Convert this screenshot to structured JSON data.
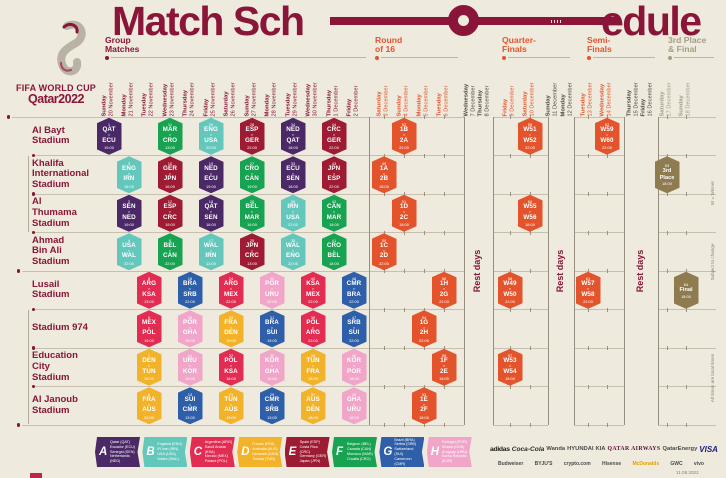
{
  "title": {
    "left": "Match Sch",
    "right": "edule"
  },
  "logo": {
    "line1": "FIFA WORLD CUP",
    "line2": "Qatar2022"
  },
  "colors": {
    "background": "#EEEADE",
    "maroon": "#8A1538",
    "knockout_orange": "#E4542C",
    "gold": "#8F7B50",
    "groups": {
      "A": "#4B2866",
      "B": "#63C7BC",
      "C": "#E22C52",
      "D": "#F2B32A",
      "E": "#9D1B33",
      "F": "#17A351",
      "G": "#2E5FA8",
      "H": "#F0A5C9",
      "KO": "#E4542C",
      "GOLD": "#8F7B50"
    },
    "date_phases": {
      "group": "#8A1538",
      "knockout": "#E4542C",
      "rest": "#4E4A44",
      "final": "#A79D86"
    }
  },
  "phases": [
    {
      "line1": "Group",
      "line2": "Matches",
      "color": "#8A1538"
    },
    {
      "line1": "Round",
      "line2": "of 16",
      "color": "#E4542C"
    },
    {
      "line1": "Quarter-",
      "line2": "Finals",
      "color": "#E4542C"
    },
    {
      "line1": "Semi-",
      "line2": "Finals",
      "color": "#E4542C"
    },
    {
      "line1": "3rd Place",
      "line2": "& Final",
      "color": "#A79D86"
    }
  ],
  "columns": [
    {
      "day": "Sunday",
      "date": "20 November",
      "phase": "group"
    },
    {
      "day": "Monday",
      "date": "21 November",
      "phase": "group"
    },
    {
      "day": "Tuesday",
      "date": "22 November",
      "phase": "group"
    },
    {
      "day": "Wednesday",
      "date": "23 November",
      "phase": "group"
    },
    {
      "day": "Thursday",
      "date": "24 November",
      "phase": "group"
    },
    {
      "day": "Friday",
      "date": "25 November",
      "phase": "group"
    },
    {
      "day": "Saturday",
      "date": "26 November",
      "phase": "group"
    },
    {
      "day": "Sunday",
      "date": "27 November",
      "phase": "group"
    },
    {
      "day": "Monday",
      "date": "28 November",
      "phase": "group"
    },
    {
      "day": "Tuesday",
      "date": "29 November",
      "phase": "group"
    },
    {
      "day": "Wednesday",
      "date": "30 November",
      "phase": "group"
    },
    {
      "day": "Thursday",
      "date": "1 December",
      "phase": "group"
    },
    {
      "day": "Friday",
      "date": "2 December",
      "phase": "group"
    },
    {
      "day": "Saturday",
      "date": "3 December",
      "phase": "knockout"
    },
    {
      "day": "Sunday",
      "date": "4 December",
      "phase": "knockout"
    },
    {
      "day": "Monday",
      "date": "5 December",
      "phase": "knockout"
    },
    {
      "day": "Tuesday",
      "date": "6 December",
      "phase": "knockout"
    },
    {
      "day": "Wednesday",
      "date": "7 December",
      "phase": "rest"
    },
    {
      "day": "Thursday",
      "date": "8 December",
      "phase": "rest"
    },
    {
      "day": "Friday",
      "date": "9 December",
      "phase": "knockout"
    },
    {
      "day": "Saturday",
      "date": "10 December",
      "phase": "knockout"
    },
    {
      "day": "Sunday",
      "date": "11 December",
      "phase": "rest"
    },
    {
      "day": "Monday",
      "date": "12 December",
      "phase": "rest"
    },
    {
      "day": "Tuesday",
      "date": "13 December",
      "phase": "knockout"
    },
    {
      "day": "Wednesday",
      "date": "14 December",
      "phase": "knockout"
    },
    {
      "day": "Thursday",
      "date": "15 December",
      "phase": "rest"
    },
    {
      "day": "Friday",
      "date": "16 December",
      "phase": "rest"
    },
    {
      "day": "Saturday",
      "date": "17 December",
      "phase": "final"
    },
    {
      "day": "Sunday",
      "date": "18 December",
      "phase": "final"
    }
  ],
  "rest_label": "Rest days",
  "side_notes": [
    "W = Winner",
    "Subject to change",
    "All times are local times"
  ],
  "stadiums": [
    {
      "name": "Al Bayt\nStadium",
      "matches": [
        {
          "n": 1,
          "a": "QAT",
          "b": "ECU",
          "time": "19:00",
          "g": "A",
          "col": 0
        },
        {
          "n": 11,
          "a": "MAR",
          "b": "CRO",
          "time": "13:00",
          "g": "F",
          "col": 3
        },
        {
          "n": 20,
          "a": "ENG",
          "b": "USA",
          "time": "22:00",
          "g": "B",
          "col": 5
        },
        {
          "n": 28,
          "a": "ESP",
          "b": "GER",
          "time": "22:00",
          "g": "E",
          "col": 7
        },
        {
          "n": 34,
          "a": "NED",
          "b": "QAT",
          "time": "18:00",
          "g": "A",
          "col": 9
        },
        {
          "n": 44,
          "a": "CRC",
          "b": "GER",
          "time": "22:00",
          "g": "E",
          "col": 11
        },
        {
          "n": 52,
          "a": "1B",
          "b": "2A",
          "time": "22:00",
          "g": "KO",
          "col": 14
        },
        {
          "n": 59,
          "a": "W51",
          "b": "W52",
          "time": "22:00",
          "g": "KO",
          "col": 20
        },
        {
          "n": 62,
          "a": "W59",
          "b": "W60",
          "time": "22:00",
          "g": "KO",
          "col": 24
        }
      ]
    },
    {
      "name": "Khalifa\nInternational\nStadium",
      "matches": [
        {
          "n": 3,
          "a": "ENG",
          "b": "IRN",
          "time": "16:00",
          "g": "B",
          "col": 1
        },
        {
          "n": 10,
          "a": "GER",
          "b": "JPN",
          "time": "16:00",
          "g": "E",
          "col": 3
        },
        {
          "n": 19,
          "a": "NED",
          "b": "ECU",
          "time": "19:00",
          "g": "A",
          "col": 5
        },
        {
          "n": 27,
          "a": "CRO",
          "b": "CAN",
          "time": "19:00",
          "g": "F",
          "col": 7
        },
        {
          "n": 33,
          "a": "ECU",
          "b": "SEN",
          "time": "18:00",
          "g": "A",
          "col": 9
        },
        {
          "n": 43,
          "a": "JPN",
          "b": "ESP",
          "time": "22:00",
          "g": "E",
          "col": 11
        },
        {
          "n": 49,
          "a": "1A",
          "b": "2B",
          "time": "18:00",
          "g": "KO",
          "col": 13
        },
        {
          "n": 63,
          "label": "3rd\nPlace",
          "time": "18:00",
          "g": "GOLD",
          "col": 27
        }
      ]
    },
    {
      "name": "Al\nThumama\nStadium",
      "matches": [
        {
          "n": 2,
          "a": "SEN",
          "b": "NED",
          "time": "19:00",
          "g": "A",
          "col": 1
        },
        {
          "n": 12,
          "a": "ESP",
          "b": "CRC",
          "time": "19:00",
          "g": "E",
          "col": 3
        },
        {
          "n": 18,
          "a": "QAT",
          "b": "SEN",
          "time": "16:00",
          "g": "A",
          "col": 5
        },
        {
          "n": 26,
          "a": "BEL",
          "b": "MAR",
          "time": "16:00",
          "g": "F",
          "col": 7
        },
        {
          "n": 36,
          "a": "IRN",
          "b": "USA",
          "time": "22:00",
          "g": "B",
          "col": 9
        },
        {
          "n": 42,
          "a": "CAN",
          "b": "MAR",
          "time": "18:00",
          "g": "F",
          "col": 11
        },
        {
          "n": 51,
          "a": "1D",
          "b": "2C",
          "time": "18:00",
          "g": "KO",
          "col": 14
        },
        {
          "n": 60,
          "a": "W55",
          "b": "W56",
          "time": "18:00",
          "g": "KO",
          "col": 20
        }
      ]
    },
    {
      "name": "Ahmad\nBin Ali\nStadium",
      "matches": [
        {
          "n": 4,
          "a": "USA",
          "b": "WAL",
          "time": "22:00",
          "g": "B",
          "col": 1
        },
        {
          "n": 9,
          "a": "BEL",
          "b": "CAN",
          "time": "22:00",
          "g": "F",
          "col": 3
        },
        {
          "n": 17,
          "a": "WAL",
          "b": "IRN",
          "time": "13:00",
          "g": "B",
          "col": 5
        },
        {
          "n": 25,
          "a": "JPN",
          "b": "CRC",
          "time": "13:00",
          "g": "E",
          "col": 7
        },
        {
          "n": 35,
          "a": "WAL",
          "b": "ENG",
          "time": "22:00",
          "g": "B",
          "col": 9
        },
        {
          "n": 41,
          "a": "CRO",
          "b": "BEL",
          "time": "18:00",
          "g": "F",
          "col": 11
        },
        {
          "n": 50,
          "a": "1C",
          "b": "2D",
          "time": "22:00",
          "g": "KO",
          "col": 13
        }
      ]
    },
    {
      "name": "Lusail\nStadium",
      "matches": [
        {
          "n": 8,
          "a": "ARG",
          "b": "KSA",
          "time": "13:00",
          "g": "C",
          "col": 2
        },
        {
          "n": 16,
          "a": "BRA",
          "b": "SRB",
          "time": "22:00",
          "g": "G",
          "col": 4
        },
        {
          "n": 24,
          "a": "ARG",
          "b": "MEX",
          "time": "22:00",
          "g": "C",
          "col": 6
        },
        {
          "n": 32,
          "a": "POR",
          "b": "URU",
          "time": "22:00",
          "g": "H",
          "col": 8
        },
        {
          "n": 40,
          "a": "KSA",
          "b": "MEX",
          "time": "22:00",
          "g": "C",
          "col": 10
        },
        {
          "n": 48,
          "a": "CMR",
          "b": "BRA",
          "time": "22:00",
          "g": "G",
          "col": 12
        },
        {
          "n": 56,
          "a": "1H",
          "b": "2G",
          "time": "22:00",
          "g": "KO",
          "col": 16
        },
        {
          "n": 58,
          "a": "W49",
          "b": "W50",
          "time": "22:00",
          "g": "KO",
          "col": 19
        },
        {
          "n": 61,
          "a": "W57",
          "b": "W58",
          "time": "22:00",
          "g": "KO",
          "col": 23
        },
        {
          "n": 64,
          "label": "Final",
          "time": "18:00",
          "g": "GOLD",
          "col": 28
        }
      ]
    },
    {
      "name": "Stadium 974",
      "matches": [
        {
          "n": 5,
          "a": "MEX",
          "b": "POL",
          "time": "19:00",
          "g": "C",
          "col": 2
        },
        {
          "n": 15,
          "a": "POR",
          "b": "GHA",
          "time": "19:00",
          "g": "H",
          "col": 4
        },
        {
          "n": 23,
          "a": "FRA",
          "b": "DEN",
          "time": "19:00",
          "g": "D",
          "col": 6
        },
        {
          "n": 31,
          "a": "BRA",
          "b": "SUI",
          "time": "19:00",
          "g": "G",
          "col": 8
        },
        {
          "n": 39,
          "a": "POL",
          "b": "ARG",
          "time": "22:00",
          "g": "C",
          "col": 10
        },
        {
          "n": 47,
          "a": "SRB",
          "b": "SUI",
          "time": "22:00",
          "g": "G",
          "col": 12
        },
        {
          "n": 54,
          "a": "1G",
          "b": "2H",
          "time": "22:00",
          "g": "KO",
          "col": 15
        }
      ]
    },
    {
      "name": "Education\nCity\nStadium",
      "matches": [
        {
          "n": 7,
          "a": "DEN",
          "b": "TUN",
          "time": "16:00",
          "g": "D",
          "col": 2
        },
        {
          "n": 14,
          "a": "URU",
          "b": "KOR",
          "time": "16:00",
          "g": "H",
          "col": 4
        },
        {
          "n": 22,
          "a": "POL",
          "b": "KSA",
          "time": "16:00",
          "g": "C",
          "col": 6
        },
        {
          "n": 30,
          "a": "KOR",
          "b": "GHA",
          "time": "16:00",
          "g": "H",
          "col": 8
        },
        {
          "n": 38,
          "a": "TUN",
          "b": "FRA",
          "time": "18:00",
          "g": "D",
          "col": 10
        },
        {
          "n": 46,
          "a": "KOR",
          "b": "POR",
          "time": "18:00",
          "g": "H",
          "col": 12
        },
        {
          "n": 55,
          "a": "1F",
          "b": "2E",
          "time": "18:00",
          "g": "KO",
          "col": 16
        },
        {
          "n": 57,
          "a": "W53",
          "b": "W54",
          "time": "18:00",
          "g": "KO",
          "col": 19
        }
      ]
    },
    {
      "name": "Al Janoub\nStadium",
      "matches": [
        {
          "n": 6,
          "a": "FRA",
          "b": "AUS",
          "time": "22:00",
          "g": "D",
          "col": 2
        },
        {
          "n": 13,
          "a": "SUI",
          "b": "CMR",
          "time": "13:00",
          "g": "G",
          "col": 4
        },
        {
          "n": 21,
          "a": "TUN",
          "b": "AUS",
          "time": "13:00",
          "g": "D",
          "col": 6
        },
        {
          "n": 29,
          "a": "CMR",
          "b": "SRB",
          "time": "13:00",
          "g": "G",
          "col": 8
        },
        {
          "n": 37,
          "a": "AUS",
          "b": "DEN",
          "time": "18:00",
          "g": "D",
          "col": 10
        },
        {
          "n": 45,
          "a": "GHA",
          "b": "URU",
          "time": "18:00",
          "g": "H",
          "col": 12
        },
        {
          "n": 53,
          "a": "1E",
          "b": "2F",
          "time": "18:00",
          "g": "KO",
          "col": 15
        }
      ]
    }
  ],
  "legend": {
    "groups": [
      {
        "letter": "A",
        "color": "#4B2866",
        "teams": "Qatar (QAT)\nEcuador (ECU)\nSenegal (SEN)\nNetherlands (NED)"
      },
      {
        "letter": "B",
        "color": "#63C7BC",
        "teams": "England (ENG)\nIR Iran (IRN)\nUSA (USA)\nWales (WAL)"
      },
      {
        "letter": "C",
        "color": "#E22C52",
        "teams": "Argentina (ARG)\nSaudi Arabia (KSA)\nMexico (MEX)\nPoland (POL)"
      },
      {
        "letter": "D",
        "color": "#F2B32A",
        "teams": "France (FRA)\nAustralia (AUS)\nDenmark (DEN)\nTunisia (TUN)"
      },
      {
        "letter": "E",
        "color": "#9D1B33",
        "teams": "Spain (ESP)\nCosta Rica (CRC)\nGermany (GER)\nJapan (JPN)"
      },
      {
        "letter": "F",
        "color": "#17A351",
        "teams": "Belgium (BEL)\nCanada (CAN)\nMorocco (MAR)\nCroatia (CRO)"
      },
      {
        "letter": "G",
        "color": "#2E5FA8",
        "teams": "Brazil (BRA)\nSerbia (SRB)\nSwitzerland (SUI)\nCameroon (CMR)"
      },
      {
        "letter": "H",
        "color": "#F0A5C9",
        "teams": "Portugal (POR)\nGhana (GHA)\nUruguay (URU)\nKorea Republic (KOR)"
      }
    ]
  },
  "sponsors": {
    "row1": [
      "adidas",
      "Coca-Cola",
      "Wanda",
      "HYUNDAI",
      "KIA",
      "QATAR AIRWAYS",
      "QatarEnergy",
      "VISA"
    ],
    "row2": [
      "Budweiser",
      "BYJU'S",
      "crypto.com",
      "Hisense",
      "McDonalds",
      "GWC",
      "vivo"
    ]
  },
  "footnote": "11.08.2022"
}
